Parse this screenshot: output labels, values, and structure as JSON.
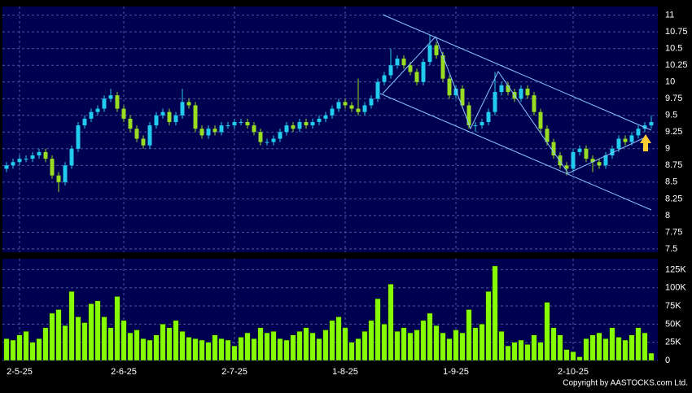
{
  "chart_data": {
    "type": "candlestick",
    "categories": [
      null,
      null,
      "2-5-25",
      null,
      null,
      null,
      null,
      null,
      null,
      null,
      null,
      null,
      null,
      null,
      null,
      null,
      null,
      null,
      "2-6-25",
      null,
      null,
      null,
      null,
      null,
      null,
      null,
      null,
      null,
      null,
      null,
      null,
      null,
      null,
      null,
      null,
      "2-7-25",
      null,
      null,
      null,
      null,
      null,
      null,
      null,
      null,
      null,
      null,
      null,
      null,
      null,
      null,
      null,
      null,
      "1-8-25",
      null,
      null,
      null,
      null,
      null,
      null,
      null,
      null,
      null,
      null,
      null,
      null,
      null,
      null,
      null,
      null,
      "1-9-25",
      null,
      null,
      null,
      null,
      null,
      null,
      null,
      null,
      null,
      null,
      null,
      null,
      null,
      null,
      null,
      null,
      null,
      "2-10-25",
      null,
      null,
      null,
      null,
      null,
      null,
      null,
      null,
      null,
      null,
      null,
      null
    ],
    "open": [
      8.7,
      8.75,
      8.8,
      8.85,
      8.85,
      8.9,
      8.95,
      8.85,
      8.6,
      8.5,
      8.75,
      9.0,
      9.35,
      9.45,
      9.55,
      9.6,
      9.75,
      9.8,
      9.6,
      9.45,
      9.3,
      9.15,
      9.05,
      9.35,
      9.5,
      9.55,
      9.4,
      9.5,
      9.7,
      9.65,
      9.3,
      9.2,
      9.3,
      9.25,
      9.35,
      9.35,
      9.4,
      9.4,
      9.35,
      9.25,
      9.1,
      9.1,
      9.15,
      9.25,
      9.35,
      9.3,
      9.4,
      9.35,
      9.4,
      9.45,
      9.5,
      9.6,
      9.7,
      9.65,
      9.6,
      9.55,
      9.65,
      9.75,
      10.0,
      10.1,
      10.25,
      10.35,
      10.25,
      10.15,
      10.0,
      10.3,
      10.55,
      10.4,
      10.05,
      9.8,
      9.9,
      9.65,
      9.35,
      9.35,
      9.4,
      9.55,
      9.85,
      9.95,
      9.85,
      9.75,
      9.9,
      9.8,
      9.55,
      9.3,
      9.1,
      8.9,
      8.75,
      8.7,
      8.95,
      9.0,
      8.85,
      8.8,
      8.75,
      8.9,
      9.0,
      9.15,
      9.1,
      9.2,
      9.3,
      9.35
    ],
    "high": [
      8.8,
      8.85,
      8.9,
      8.9,
      8.95,
      9.0,
      9.0,
      8.9,
      8.65,
      8.8,
      9.05,
      9.4,
      9.5,
      9.6,
      9.65,
      9.8,
      9.9,
      9.85,
      9.65,
      9.5,
      9.35,
      9.2,
      9.4,
      9.55,
      9.6,
      9.6,
      9.55,
      9.9,
      9.75,
      9.7,
      9.35,
      9.35,
      9.35,
      9.4,
      9.4,
      9.45,
      9.45,
      9.45,
      9.4,
      9.3,
      9.15,
      9.2,
      9.3,
      9.4,
      9.4,
      9.45,
      9.45,
      9.45,
      9.5,
      9.55,
      9.65,
      9.75,
      9.75,
      9.7,
      10.05,
      9.7,
      9.8,
      10.05,
      10.15,
      10.5,
      10.4,
      10.4,
      10.3,
      10.2,
      10.35,
      10.7,
      10.6,
      10.45,
      10.1,
      9.95,
      9.95,
      9.7,
      9.4,
      9.45,
      9.6,
      10.15,
      10.0,
      10.0,
      9.9,
      9.95,
      9.95,
      9.85,
      9.6,
      9.35,
      9.15,
      8.95,
      8.8,
      9.0,
      9.05,
      9.05,
      8.9,
      8.85,
      8.95,
      9.05,
      9.2,
      9.2,
      9.25,
      9.35,
      9.4,
      9.5
    ],
    "low": [
      8.65,
      8.7,
      8.75,
      8.8,
      8.8,
      8.85,
      8.8,
      8.55,
      8.35,
      8.45,
      8.7,
      8.95,
      9.3,
      9.4,
      9.5,
      9.55,
      9.7,
      9.55,
      9.4,
      9.25,
      9.1,
      9.0,
      9.0,
      9.3,
      9.45,
      9.35,
      9.35,
      9.45,
      9.6,
      9.25,
      9.15,
      9.15,
      9.2,
      9.2,
      9.3,
      9.3,
      9.35,
      9.3,
      9.2,
      9.05,
      9.05,
      9.05,
      9.1,
      9.2,
      9.25,
      9.25,
      9.3,
      9.3,
      9.35,
      9.4,
      9.45,
      9.55,
      9.6,
      9.55,
      9.5,
      9.5,
      9.6,
      9.7,
      9.95,
      10.05,
      10.2,
      10.2,
      10.1,
      9.95,
      9.95,
      10.25,
      10.35,
      10.0,
      9.75,
      9.75,
      9.6,
      9.3,
      9.25,
      9.3,
      9.35,
      9.5,
      9.8,
      9.8,
      9.7,
      9.7,
      9.75,
      9.5,
      9.25,
      9.05,
      8.85,
      8.7,
      8.6,
      8.65,
      8.9,
      8.8,
      8.65,
      8.7,
      8.7,
      8.85,
      8.95,
      9.05,
      9.05,
      9.15,
      9.25,
      9.3
    ],
    "close": [
      8.75,
      8.8,
      8.85,
      8.85,
      8.9,
      8.95,
      8.85,
      8.6,
      8.5,
      8.75,
      9.0,
      9.35,
      9.45,
      9.55,
      9.6,
      9.75,
      9.8,
      9.6,
      9.45,
      9.3,
      9.15,
      9.05,
      9.35,
      9.5,
      9.55,
      9.4,
      9.5,
      9.7,
      9.65,
      9.3,
      9.2,
      9.3,
      9.25,
      9.35,
      9.35,
      9.4,
      9.4,
      9.35,
      9.25,
      9.1,
      9.1,
      9.15,
      9.25,
      9.35,
      9.3,
      9.4,
      9.35,
      9.4,
      9.45,
      9.5,
      9.6,
      9.7,
      9.65,
      9.6,
      9.55,
      9.65,
      9.75,
      10.0,
      10.1,
      10.25,
      10.35,
      10.25,
      10.15,
      10.0,
      10.3,
      10.55,
      10.4,
      10.05,
      9.8,
      9.9,
      9.65,
      9.35,
      9.35,
      9.4,
      9.55,
      9.85,
      9.95,
      9.85,
      9.75,
      9.9,
      9.8,
      9.55,
      9.3,
      9.1,
      8.9,
      8.75,
      8.7,
      8.95,
      9.0,
      8.85,
      8.8,
      8.75,
      8.9,
      9.0,
      9.15,
      9.1,
      9.2,
      9.3,
      9.35,
      9.4
    ],
    "volume": [
      30000,
      28000,
      35000,
      40000,
      25000,
      30000,
      45000,
      65000,
      70000,
      48000,
      95000,
      60000,
      52000,
      78000,
      82000,
      60000,
      45000,
      88000,
      55000,
      38000,
      42000,
      30000,
      28000,
      35000,
      50000,
      45000,
      55000,
      40000,
      32000,
      30000,
      28000,
      25000,
      35000,
      30000,
      28000,
      20000,
      32000,
      38000,
      30000,
      45000,
      38000,
      40000,
      30000,
      28000,
      35000,
      40000,
      45000,
      38000,
      30000,
      42000,
      55000,
      60000,
      45000,
      25000,
      30000,
      40000,
      55000,
      85000,
      50000,
      105000,
      40000,
      45000,
      38000,
      42000,
      55000,
      65000,
      48000,
      38000,
      30000,
      42000,
      38000,
      70000,
      45000,
      50000,
      95000,
      130000,
      40000,
      20000,
      25000,
      28000,
      22000,
      35000,
      25000,
      80000,
      45000,
      35000,
      15000,
      12000,
      5000,
      30000,
      35000,
      38000,
      30000,
      45000,
      32000,
      28000,
      35000,
      45000,
      38000,
      10000
    ],
    "up_color": "#22ccee",
    "down_color": "#99dd22",
    "volume_color": "#88ff00",
    "ylim": [
      7.45,
      11.13
    ],
    "yticks": [
      7.5,
      7.75,
      8,
      8.25,
      8.5,
      8.75,
      9,
      9.25,
      9.5,
      9.75,
      10,
      10.25,
      10.5,
      10.75,
      11
    ],
    "y2lim": [
      0,
      140000
    ],
    "y2ticks": [
      {
        "value": 0,
        "label": "0"
      },
      {
        "value": 25000,
        "label": "25K"
      },
      {
        "value": 50000,
        "label": "50K"
      },
      {
        "value": 75000,
        "label": "75K"
      },
      {
        "value": 100000,
        "label": "100K"
      },
      {
        "value": 125000,
        "label": "125K"
      }
    ],
    "grid": true,
    "copyright": "Copyright by AASTOCKS.com Ltd."
  }
}
